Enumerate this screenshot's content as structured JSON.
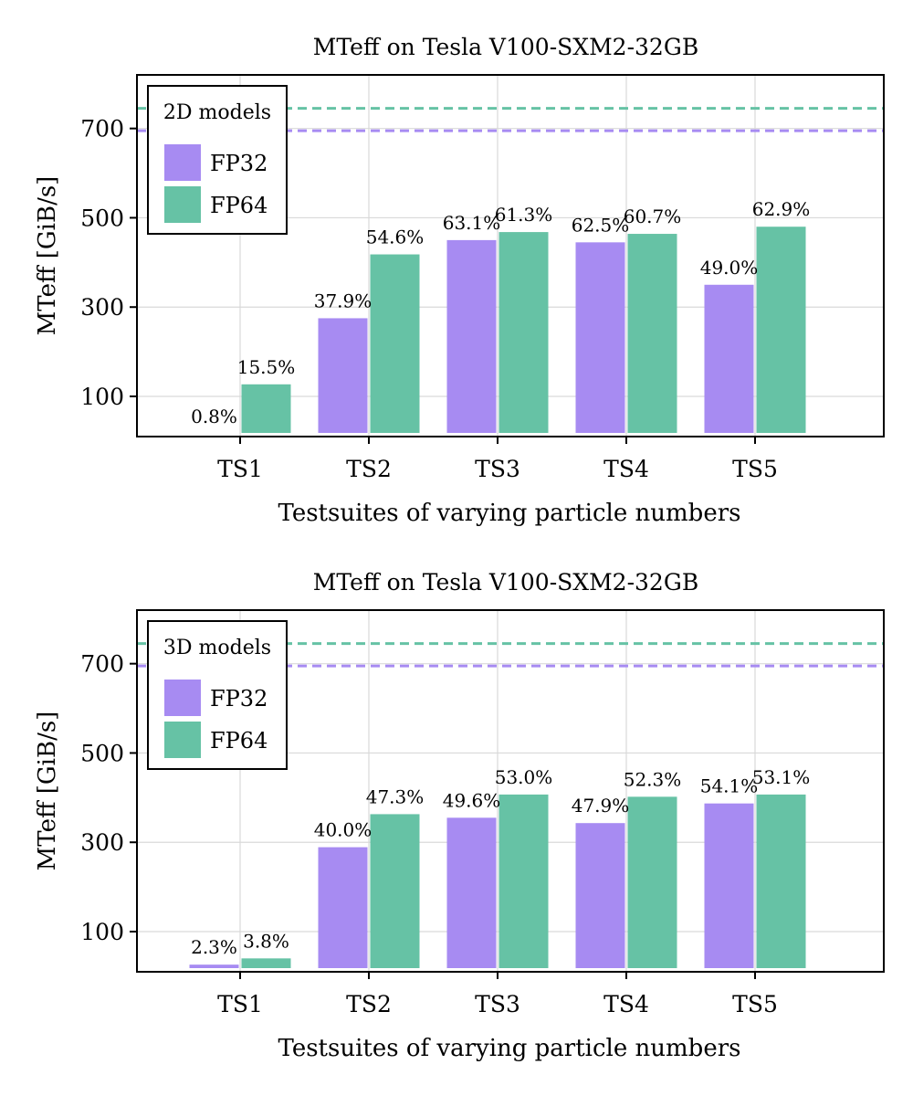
{
  "colors": {
    "fp32": "#a78bf2",
    "fp64": "#66c2a5"
  },
  "chart_data": [
    {
      "type": "bar",
      "title": "MTeff on Tesla V100-SXM2-32GB",
      "xlabel": "Testsuites of varying particle numbers",
      "ylabel": "MTeff [GiB/s]",
      "categories": [
        "TS1",
        "TS2",
        "TS3",
        "TS4",
        "TS5"
      ],
      "ylim": [
        10,
        820
      ],
      "yticks": [
        100,
        300,
        500,
        700
      ],
      "legend_title": "2D models",
      "legend_position": "top-left",
      "series": [
        {
          "name": "FP32",
          "color": "#a78bf2",
          "values": [
            16,
            275,
            450,
            445,
            350
          ],
          "labels": [
            "0.8%",
            "37.9%",
            "63.1%",
            "62.5%",
            "49.0%"
          ],
          "peak": 695
        },
        {
          "name": "FP64",
          "color": "#66c2a5",
          "values": [
            127,
            418,
            468,
            464,
            480
          ],
          "labels": [
            "15.5%",
            "54.6%",
            "61.3%",
            "60.7%",
            "62.9%"
          ],
          "peak": 745
        }
      ]
    },
    {
      "type": "bar",
      "title": "MTeff on Tesla V100-SXM2-32GB",
      "xlabel": "Testsuites of varying particle numbers",
      "ylabel": "MTeff [GiB/s]",
      "categories": [
        "TS1",
        "TS2",
        "TS3",
        "TS4",
        "TS5"
      ],
      "ylim": [
        10,
        820
      ],
      "yticks": [
        100,
        300,
        500,
        700
      ],
      "legend_title": "3D models",
      "legend_position": "top-left",
      "series": [
        {
          "name": "FP32",
          "color": "#a78bf2",
          "values": [
            26,
            289,
            355,
            343,
            387
          ],
          "labels": [
            "2.3%",
            "40.0%",
            "49.6%",
            "47.9%",
            "54.1%"
          ],
          "peak": 695
        },
        {
          "name": "FP64",
          "color": "#66c2a5",
          "values": [
            40,
            363,
            407,
            402,
            407
          ],
          "labels": [
            "3.8%",
            "47.3%",
            "53.0%",
            "52.3%",
            "53.1%"
          ],
          "peak": 745
        }
      ]
    }
  ]
}
